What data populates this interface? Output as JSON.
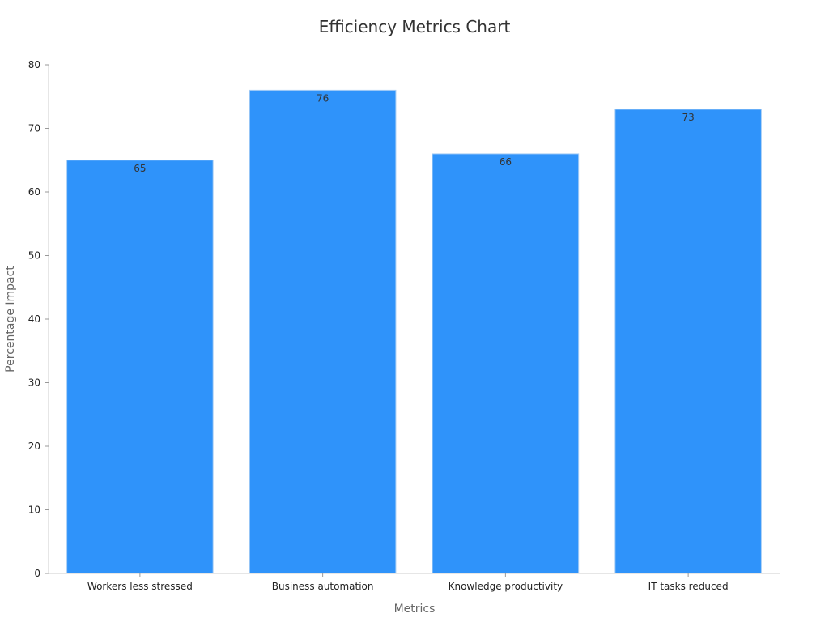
{
  "chart_data": {
    "type": "bar",
    "title": "Efficiency Metrics Chart",
    "xlabel": "Metrics",
    "ylabel": "Percentage Impact",
    "categories": [
      "Workers less stressed",
      "Business automation",
      "Knowledge productivity",
      "IT tasks reduced"
    ],
    "values": [
      65,
      76,
      66,
      73
    ],
    "ylim": [
      0,
      80
    ],
    "yticks": [
      0,
      10,
      20,
      30,
      40,
      50,
      60,
      70,
      80
    ],
    "grid": false,
    "colors": {
      "bar": "#2F93FA",
      "bar_edge": "#A9CFF5",
      "axis": "#CCCCCC"
    }
  }
}
